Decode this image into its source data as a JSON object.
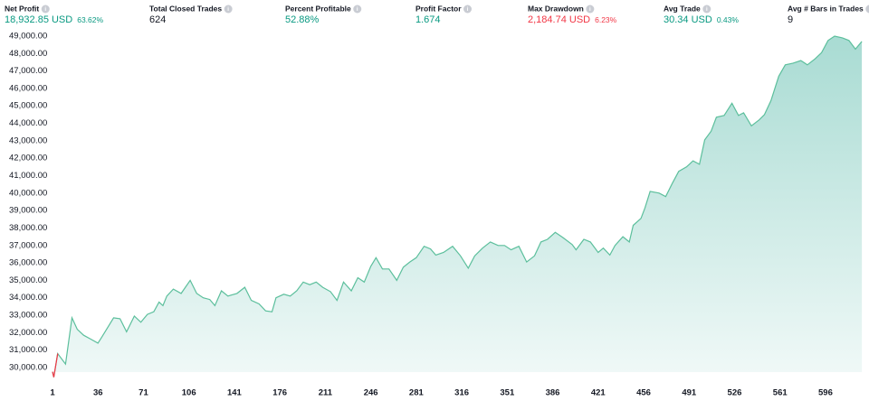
{
  "stats": [
    {
      "label": "Net Profit",
      "value": "18,932.85 USD",
      "sub": "63.62%",
      "color": "#089981"
    },
    {
      "label": "Total Closed Trades",
      "value": "624",
      "color": "#131722"
    },
    {
      "label": "Percent Profitable",
      "value": "52.88%",
      "color": "#089981"
    },
    {
      "label": "Profit Factor",
      "value": "1.674",
      "color": "#089981"
    },
    {
      "label": "Max Drawdown",
      "value": "2,184.74 USD",
      "sub": "6.23%",
      "color": "#f23645"
    },
    {
      "label": "Avg Trade",
      "value": "30.34 USD",
      "sub": "0.43%",
      "color": "#089981"
    },
    {
      "label": "Avg # Bars in Trades",
      "value": "9",
      "color": "#131722"
    }
  ],
  "chart_data": {
    "type": "area",
    "x": [
      1,
      2,
      5,
      11,
      16,
      20,
      25,
      30,
      36,
      39,
      48,
      53,
      58,
      64,
      69,
      74,
      79,
      83,
      86,
      89,
      94,
      100,
      107,
      112,
      117,
      122,
      126,
      131,
      136,
      143,
      149,
      154,
      160,
      165,
      170,
      173,
      179,
      184,
      189,
      194,
      199,
      204,
      209,
      215,
      220,
      225,
      231,
      236,
      241,
      246,
      250,
      255,
      260,
      266,
      271,
      276,
      281,
      287,
      292,
      296,
      302,
      309,
      315,
      321,
      326,
      332,
      338,
      344,
      349,
      354,
      360,
      366,
      372,
      377,
      382,
      388,
      394,
      401,
      404,
      410,
      415,
      421,
      425,
      430,
      434,
      440,
      445,
      448,
      454,
      457,
      461,
      468,
      473,
      478,
      483,
      489,
      494,
      499,
      503,
      508,
      512,
      518,
      524,
      529,
      533,
      539,
      545,
      549,
      554,
      560,
      565,
      571,
      577,
      582,
      588,
      593,
      598,
      603,
      609,
      614,
      619,
      624
    ],
    "series": [
      {
        "name": "Equity",
        "color": "#5cbf9c",
        "negative_color": "#f23645",
        "values": [
          29760,
          29450,
          30800,
          30200,
          32850,
          32200,
          31850,
          31650,
          31400,
          31750,
          32850,
          32800,
          32050,
          32950,
          32600,
          33050,
          33200,
          33750,
          33550,
          34100,
          34500,
          34250,
          35000,
          34250,
          34000,
          33900,
          33550,
          34400,
          34100,
          34250,
          34600,
          33850,
          33650,
          33250,
          33200,
          34000,
          34200,
          34100,
          34400,
          34900,
          34750,
          34900,
          34600,
          34350,
          33850,
          34900,
          34400,
          35150,
          34900,
          35800,
          36300,
          35650,
          35650,
          35000,
          35750,
          36050,
          36300,
          36950,
          36800,
          36450,
          36600,
          36950,
          36400,
          35700,
          36400,
          36850,
          37200,
          37000,
          37000,
          36750,
          36950,
          36050,
          36400,
          37200,
          37350,
          37750,
          37450,
          37050,
          36750,
          37350,
          37200,
          36600,
          36850,
          36450,
          37000,
          37500,
          37200,
          38150,
          38550,
          39150,
          40100,
          40000,
          39800,
          40550,
          41250,
          41500,
          41850,
          41650,
          43050,
          43550,
          44350,
          44450,
          45150,
          44450,
          44600,
          43850,
          44200,
          44500,
          45300,
          46700,
          47350,
          47450,
          47600,
          47350,
          47700,
          48050,
          48750,
          49000,
          48900,
          48750,
          48250,
          48693
        ]
      }
    ],
    "xlim": [
      1,
      626
    ],
    "xticks": [
      1,
      36,
      71,
      106,
      141,
      176,
      211,
      246,
      281,
      316,
      351,
      386,
      421,
      456,
      491,
      526,
      561,
      596
    ],
    "ylim": [
      29740,
      49360
    ],
    "yticks": [
      {
        "value": 30000,
        "label": "30,000.00"
      },
      {
        "value": 31000,
        "label": "31,000.00"
      },
      {
        "value": 32000,
        "label": "32,000.00"
      },
      {
        "value": 33000,
        "label": "33,000.00"
      },
      {
        "value": 34000,
        "label": "34,000.00"
      },
      {
        "value": 35000,
        "label": "35,000.00"
      },
      {
        "value": 36000,
        "label": "36,000.00"
      },
      {
        "value": 37000,
        "label": "37,000.00"
      },
      {
        "value": 38000,
        "label": "38,000.00"
      },
      {
        "value": 39000,
        "label": "39,000.00"
      },
      {
        "value": 40000,
        "label": "40,000.00"
      },
      {
        "value": 41000,
        "label": "41,000.00"
      },
      {
        "value": 42000,
        "label": "42,000.00"
      },
      {
        "value": 43000,
        "label": "43,000.00"
      },
      {
        "value": 44000,
        "label": "44,000.00"
      },
      {
        "value": 45000,
        "label": "45,000.00"
      },
      {
        "value": 46000,
        "label": "46,000.00"
      },
      {
        "value": 47000,
        "label": "47,000.00"
      },
      {
        "value": 48000,
        "label": "48,000.00"
      },
      {
        "value": 49000,
        "label": "49,000.00"
      }
    ]
  }
}
